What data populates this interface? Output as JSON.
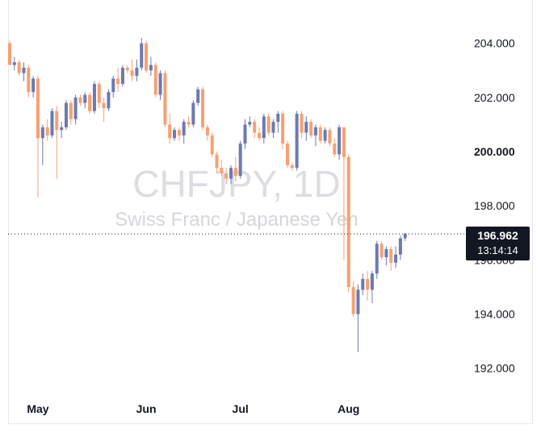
{
  "chart_data": {
    "type": "candlestick",
    "symbol_watermark": "CHFJPY, 1D",
    "description_watermark": "Swiss Franc / Japanese Yen",
    "yticks": [
      "204.000",
      "202.000",
      "200.000",
      "198.000",
      "196.000",
      "194.000",
      "192.000"
    ],
    "ylim": [
      190.95,
      205.6
    ],
    "xticks": [
      "May",
      "Jun",
      "Jul",
      "Aug"
    ],
    "last_price": "196.962",
    "countdown": "13:14:14",
    "colors": {
      "up": "#6b7ab0",
      "down": "#f7a072",
      "badge": "#131722"
    },
    "candles": [
      {
        "d": "Apr 23",
        "o": 204.0,
        "h": 204.1,
        "l": 203.2,
        "c": 203.2
      },
      {
        "d": "Apr 24",
        "o": 203.2,
        "h": 203.5,
        "l": 203.0,
        "c": 203.3
      },
      {
        "d": "Apr 25",
        "o": 203.3,
        "h": 203.4,
        "l": 202.8,
        "c": 202.9
      },
      {
        "d": "Apr 26",
        "o": 202.9,
        "h": 203.3,
        "l": 202.6,
        "c": 203.1
      },
      {
        "d": "Apr 29",
        "o": 203.1,
        "h": 203.2,
        "l": 202.0,
        "c": 202.2
      },
      {
        "d": "Apr 30",
        "o": 202.2,
        "h": 202.8,
        "l": 202.0,
        "c": 202.7
      },
      {
        "d": "May 1",
        "o": 202.7,
        "h": 202.8,
        "l": 198.3,
        "c": 200.5
      },
      {
        "d": "May 2",
        "o": 200.5,
        "h": 201.0,
        "l": 199.5,
        "c": 200.9
      },
      {
        "d": "May 3",
        "o": 200.9,
        "h": 201.2,
        "l": 200.4,
        "c": 200.6
      },
      {
        "d": "May 6",
        "o": 200.6,
        "h": 201.6,
        "l": 200.5,
        "c": 201.5
      },
      {
        "d": "May 7",
        "o": 201.5,
        "h": 201.7,
        "l": 199.0,
        "c": 200.8
      },
      {
        "d": "May 8",
        "o": 200.8,
        "h": 201.1,
        "l": 200.5,
        "c": 200.9
      },
      {
        "d": "May 9",
        "o": 200.9,
        "h": 201.9,
        "l": 200.8,
        "c": 201.8
      },
      {
        "d": "May 10",
        "o": 201.8,
        "h": 201.9,
        "l": 201.0,
        "c": 201.2
      },
      {
        "d": "May 13",
        "o": 201.2,
        "h": 202.1,
        "l": 201.0,
        "c": 202.0
      },
      {
        "d": "May 14",
        "o": 202.0,
        "h": 202.1,
        "l": 201.7,
        "c": 201.8
      },
      {
        "d": "May 15",
        "o": 201.8,
        "h": 202.2,
        "l": 201.6,
        "c": 202.1
      },
      {
        "d": "May 16",
        "o": 202.1,
        "h": 202.2,
        "l": 201.4,
        "c": 201.5
      },
      {
        "d": "May 17",
        "o": 201.5,
        "h": 202.6,
        "l": 201.4,
        "c": 202.5
      },
      {
        "d": "May 20",
        "o": 202.5,
        "h": 202.6,
        "l": 201.6,
        "c": 201.8
      },
      {
        "d": "May 21",
        "o": 201.8,
        "h": 202.0,
        "l": 201.1,
        "c": 201.6
      },
      {
        "d": "May 22",
        "o": 201.6,
        "h": 202.3,
        "l": 201.5,
        "c": 202.2
      },
      {
        "d": "May 23",
        "o": 202.2,
        "h": 202.8,
        "l": 202.0,
        "c": 202.7
      },
      {
        "d": "May 24",
        "o": 202.7,
        "h": 203.1,
        "l": 202.2,
        "c": 202.5
      },
      {
        "d": "May 27",
        "o": 202.5,
        "h": 203.2,
        "l": 202.4,
        "c": 203.1
      },
      {
        "d": "May 28",
        "o": 203.1,
        "h": 203.2,
        "l": 202.9,
        "c": 203.0
      },
      {
        "d": "May 29",
        "o": 203.0,
        "h": 203.4,
        "l": 202.6,
        "c": 202.8
      },
      {
        "d": "May 30",
        "o": 202.8,
        "h": 203.4,
        "l": 202.6,
        "c": 203.1
      },
      {
        "d": "May 31",
        "o": 203.1,
        "h": 204.2,
        "l": 203.0,
        "c": 204.0
      },
      {
        "d": "Jun 3",
        "o": 204.0,
        "h": 204.1,
        "l": 202.9,
        "c": 203.0
      },
      {
        "d": "Jun 4",
        "o": 203.0,
        "h": 203.5,
        "l": 202.8,
        "c": 203.2
      },
      {
        "d": "Jun 5",
        "o": 203.2,
        "h": 203.3,
        "l": 202.0,
        "c": 202.1
      },
      {
        "d": "Jun 6",
        "o": 202.1,
        "h": 203.0,
        "l": 201.9,
        "c": 202.9
      },
      {
        "d": "Jun 7",
        "o": 202.9,
        "h": 203.0,
        "l": 200.9,
        "c": 201.0
      },
      {
        "d": "Jun 10",
        "o": 201.0,
        "h": 201.4,
        "l": 200.3,
        "c": 200.5
      },
      {
        "d": "Jun 11",
        "o": 200.5,
        "h": 200.9,
        "l": 200.4,
        "c": 200.8
      },
      {
        "d": "Jun 12",
        "o": 200.8,
        "h": 200.9,
        "l": 200.4,
        "c": 200.6
      },
      {
        "d": "Jun 13",
        "o": 200.6,
        "h": 201.2,
        "l": 200.3,
        "c": 201.1
      },
      {
        "d": "Jun 14",
        "o": 201.1,
        "h": 201.3,
        "l": 200.9,
        "c": 201.0
      },
      {
        "d": "Jun 17",
        "o": 201.0,
        "h": 201.9,
        "l": 200.9,
        "c": 201.8
      },
      {
        "d": "Jun 18",
        "o": 201.8,
        "h": 202.4,
        "l": 201.7,
        "c": 202.3
      },
      {
        "d": "Jun 19",
        "o": 202.3,
        "h": 202.4,
        "l": 200.8,
        "c": 200.9
      },
      {
        "d": "Jun 20",
        "o": 200.9,
        "h": 201.0,
        "l": 200.4,
        "c": 200.6
      },
      {
        "d": "Jun 21",
        "o": 200.6,
        "h": 200.7,
        "l": 199.8,
        "c": 199.9
      },
      {
        "d": "Jun 24",
        "o": 199.9,
        "h": 200.0,
        "l": 199.2,
        "c": 199.4
      },
      {
        "d": "Jun 25",
        "o": 199.4,
        "h": 199.7,
        "l": 199.1,
        "c": 199.2
      },
      {
        "d": "Jun 26",
        "o": 199.2,
        "h": 199.4,
        "l": 198.8,
        "c": 199.0
      },
      {
        "d": "Jun 27",
        "o": 199.0,
        "h": 199.5,
        "l": 198.8,
        "c": 199.4
      },
      {
        "d": "Jun 28",
        "o": 199.4,
        "h": 199.8,
        "l": 198.9,
        "c": 199.1
      },
      {
        "d": "Jul 1",
        "o": 199.1,
        "h": 200.4,
        "l": 199.0,
        "c": 200.3
      },
      {
        "d": "Jul 2",
        "o": 200.3,
        "h": 201.2,
        "l": 200.1,
        "c": 201.0
      },
      {
        "d": "Jul 3",
        "o": 201.0,
        "h": 201.3,
        "l": 200.9,
        "c": 201.1
      },
      {
        "d": "Jul 4",
        "o": 201.1,
        "h": 201.2,
        "l": 200.5,
        "c": 200.7
      },
      {
        "d": "Jul 5",
        "o": 200.7,
        "h": 200.9,
        "l": 200.4,
        "c": 200.5
      },
      {
        "d": "Jul 8",
        "o": 200.5,
        "h": 201.4,
        "l": 200.3,
        "c": 201.3
      },
      {
        "d": "Jul 9",
        "o": 201.3,
        "h": 201.4,
        "l": 200.6,
        "c": 200.7
      },
      {
        "d": "Jul 10",
        "o": 200.7,
        "h": 201.2,
        "l": 200.5,
        "c": 201.1
      },
      {
        "d": "Jul 11",
        "o": 201.1,
        "h": 201.5,
        "l": 200.7,
        "c": 201.4
      },
      {
        "d": "Jul 12",
        "o": 201.4,
        "h": 201.5,
        "l": 200.1,
        "c": 200.3
      },
      {
        "d": "Jul 15",
        "o": 200.3,
        "h": 200.4,
        "l": 199.4,
        "c": 199.5
      },
      {
        "d": "Jul 16",
        "o": 199.5,
        "h": 199.6,
        "l": 199.3,
        "c": 199.4
      },
      {
        "d": "Jul 17",
        "o": 199.4,
        "h": 201.5,
        "l": 199.3,
        "c": 201.4
      },
      {
        "d": "Jul 18",
        "o": 201.4,
        "h": 201.5,
        "l": 200.5,
        "c": 200.7
      },
      {
        "d": "Jul 19",
        "o": 200.7,
        "h": 201.3,
        "l": 200.4,
        "c": 201.1
      },
      {
        "d": "Jul 22",
        "o": 201.1,
        "h": 201.2,
        "l": 200.5,
        "c": 200.6
      },
      {
        "d": "Jul 23",
        "o": 200.6,
        "h": 201.0,
        "l": 200.2,
        "c": 200.9
      },
      {
        "d": "Jul 24",
        "o": 200.9,
        "h": 201.0,
        "l": 200.3,
        "c": 200.4
      },
      {
        "d": "Jul 25",
        "o": 200.4,
        "h": 200.9,
        "l": 200.3,
        "c": 200.8
      },
      {
        "d": "Jul 26",
        "o": 200.8,
        "h": 200.9,
        "l": 200.2,
        "c": 200.3
      },
      {
        "d": "Jul 29",
        "o": 200.3,
        "h": 200.5,
        "l": 199.8,
        "c": 199.9
      },
      {
        "d": "Jul 30",
        "o": 199.9,
        "h": 201.0,
        "l": 199.7,
        "c": 200.9
      },
      {
        "d": "Jul 31",
        "o": 200.9,
        "h": 200.9,
        "l": 196.0,
        "c": 199.8
      },
      {
        "d": "Aug 1",
        "o": 199.8,
        "h": 199.9,
        "l": 194.8,
        "c": 195.0
      },
      {
        "d": "Aug 2",
        "o": 195.0,
        "h": 195.2,
        "l": 193.9,
        "c": 194.0
      },
      {
        "d": "Aug 5",
        "o": 194.0,
        "h": 195.1,
        "l": 192.6,
        "c": 194.9
      },
      {
        "d": "Aug 6",
        "o": 194.9,
        "h": 195.5,
        "l": 194.7,
        "c": 195.3
      },
      {
        "d": "Aug 7",
        "o": 195.3,
        "h": 195.6,
        "l": 194.5,
        "c": 194.9
      },
      {
        "d": "Aug 8",
        "o": 194.9,
        "h": 195.6,
        "l": 194.4,
        "c": 195.5
      },
      {
        "d": "Aug 9",
        "o": 195.5,
        "h": 196.7,
        "l": 195.3,
        "c": 196.6
      },
      {
        "d": "Aug 12",
        "o": 196.6,
        "h": 196.7,
        "l": 196.0,
        "c": 196.1
      },
      {
        "d": "Aug 13",
        "o": 196.1,
        "h": 196.5,
        "l": 195.8,
        "c": 196.4
      },
      {
        "d": "Aug 14",
        "o": 196.4,
        "h": 196.5,
        "l": 195.6,
        "c": 195.9
      },
      {
        "d": "Aug 15",
        "o": 195.9,
        "h": 196.5,
        "l": 195.7,
        "c": 196.2
      },
      {
        "d": "Aug 16",
        "o": 196.2,
        "h": 196.9,
        "l": 196.0,
        "c": 196.8
      },
      {
        "d": "Aug 19",
        "o": 196.8,
        "h": 197.0,
        "l": 196.7,
        "c": 196.962
      }
    ]
  }
}
